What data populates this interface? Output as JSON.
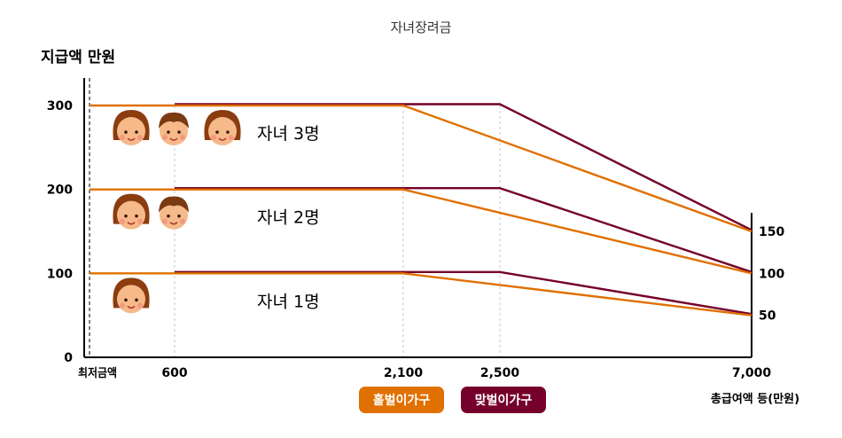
{
  "chart_data": {
    "type": "line",
    "title": "자녀장려금",
    "ylabel": "지급액 만원",
    "xlabel": "총급여액 등(만원)",
    "x_ticks": [
      "최저금액",
      "600",
      "2,100",
      "2,500",
      "7,000"
    ],
    "y_ticks_left": [
      "0",
      "100",
      "200",
      "300"
    ],
    "y_ticks_right": [
      "50",
      "100",
      "150"
    ],
    "ylim": [
      0,
      340
    ],
    "groups": [
      {
        "label": "자녀 1명",
        "children": 1,
        "single": [
          [
            0,
            100
          ],
          [
            2100,
            100
          ],
          [
            7000,
            50
          ]
        ],
        "dual": [
          [
            600,
            100
          ],
          [
            2500,
            100
          ],
          [
            7000,
            50
          ]
        ]
      },
      {
        "label": "자녀 2명",
        "children": 2,
        "single": [
          [
            0,
            200
          ],
          [
            2100,
            200
          ],
          [
            7000,
            100
          ]
        ],
        "dual": [
          [
            600,
            200
          ],
          [
            2500,
            200
          ],
          [
            7000,
            100
          ]
        ]
      },
      {
        "label": "자녀 3명",
        "children": 3,
        "single": [
          [
            0,
            300
          ],
          [
            2100,
            300
          ],
          [
            7000,
            150
          ]
        ],
        "dual": [
          [
            600,
            300
          ],
          [
            2500,
            300
          ],
          [
            7000,
            150
          ]
        ]
      }
    ],
    "legend": [
      {
        "name": "홑벌이가구",
        "color": "#e07000"
      },
      {
        "name": "맞벌이가구",
        "color": "#75002b"
      }
    ],
    "colors": {
      "single": "#e07000",
      "dual": "#75002b",
      "grid": "#c8c8c8",
      "axis": "#000000"
    }
  }
}
